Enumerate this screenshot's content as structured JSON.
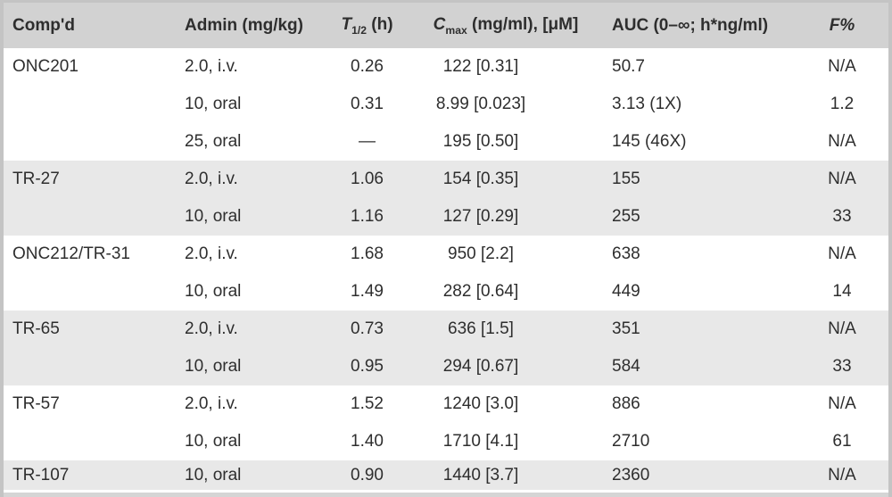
{
  "colors": {
    "header_bg": "#d2d2d2",
    "band_bg": "#e8e8e8",
    "frame_border": "#c4c4c4",
    "text": "#2e2e2e",
    "row_bg": "#ffffff",
    "bottom_strip": "#d5d5d5"
  },
  "table": {
    "columns": [
      {
        "id": "compound",
        "parts": [
          {
            "t": "Comp'd"
          }
        ]
      },
      {
        "id": "admin",
        "parts": [
          {
            "t": "Admin (mg/kg)"
          }
        ]
      },
      {
        "id": "thalf",
        "parts": [
          {
            "t": "T",
            "i": true
          },
          {
            "t": "1/2",
            "sub": true
          },
          {
            "t": " (h)"
          }
        ]
      },
      {
        "id": "cmax",
        "parts": [
          {
            "t": "C",
            "i": true
          },
          {
            "t": "max",
            "sub": true
          },
          {
            "t": " (mg/ml), [μM]"
          }
        ]
      },
      {
        "id": "auc",
        "parts": [
          {
            "t": "AUC (0–∞; h*ng/ml)"
          }
        ]
      },
      {
        "id": "f",
        "parts": [
          {
            "t": "F%",
            "i": true
          }
        ]
      }
    ],
    "groups": [
      {
        "compound": "ONC201",
        "shaded": false,
        "rows": [
          {
            "admin": "2.0, i.v.",
            "thalf": "0.26",
            "cmax": "122 [0.31]",
            "auc": "50.7",
            "f": "N/A"
          },
          {
            "admin": "10, oral",
            "thalf": "0.31",
            "cmax": "8.99 [0.023]",
            "auc": "3.13 (1X)",
            "f": "1.2"
          },
          {
            "admin": "25, oral",
            "thalf": "—",
            "cmax": "195 [0.50]",
            "auc": "145 (46X)",
            "f": "N/A"
          }
        ]
      },
      {
        "compound": "TR-27",
        "shaded": true,
        "rows": [
          {
            "admin": "2.0, i.v.",
            "thalf": "1.06",
            "cmax": "154 [0.35]",
            "auc": "155",
            "f": "N/A"
          },
          {
            "admin": "10, oral",
            "thalf": "1.16",
            "cmax": "127 [0.29]",
            "auc": "255",
            "f": "33"
          }
        ]
      },
      {
        "compound": "ONC212/TR-31",
        "shaded": false,
        "rows": [
          {
            "admin": "2.0, i.v.",
            "thalf": "1.68",
            "cmax": "950 [2.2]",
            "auc": "638",
            "f": "N/A"
          },
          {
            "admin": "10, oral",
            "thalf": "1.49",
            "cmax": "282 [0.64]",
            "auc": "449",
            "f": "14"
          }
        ]
      },
      {
        "compound": "TR-65",
        "shaded": true,
        "rows": [
          {
            "admin": "2.0, i.v.",
            "thalf": "0.73",
            "cmax": "636 [1.5]",
            "auc": "351",
            "f": "N/A"
          },
          {
            "admin": "10, oral",
            "thalf": "0.95",
            "cmax": "294 [0.67]",
            "auc": "584",
            "f": "33"
          }
        ]
      },
      {
        "compound": "TR-57",
        "shaded": false,
        "rows": [
          {
            "admin": "2.0, i.v.",
            "thalf": "1.52",
            "cmax": "1240 [3.0]",
            "auc": "886",
            "f": "N/A"
          },
          {
            "admin": "10, oral",
            "thalf": "1.40",
            "cmax": "1710 [4.1]",
            "auc": "2710",
            "f": "61"
          }
        ]
      },
      {
        "compound": "TR-107",
        "shaded": true,
        "rows": [
          {
            "admin": "10, oral",
            "thalf": "0.90",
            "cmax": "1440 [3.7]",
            "auc": "2360",
            "f": "N/A"
          }
        ]
      }
    ]
  }
}
